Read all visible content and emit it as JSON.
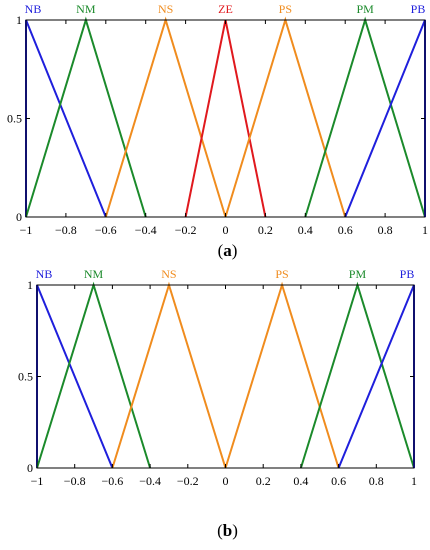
{
  "chart_data": [
    {
      "type": "line",
      "caption_open": "(",
      "caption_letter": "a",
      "caption_close": ")",
      "xlim": [
        -1,
        1
      ],
      "ylim": [
        0,
        1
      ],
      "xticks": [
        -1,
        -0.8,
        -0.6,
        -0.4,
        -0.2,
        0,
        0.2,
        0.4,
        0.6,
        0.8,
        1
      ],
      "xtick_labels": [
        "−1",
        "−0.8",
        "−0.6",
        "−0.4",
        "−0.2",
        "0",
        "0.2",
        "0.4",
        "0.6",
        "0.8",
        "1"
      ],
      "yticks": [
        0,
        0.5,
        1
      ],
      "ytick_labels": [
        "0",
        "0.5",
        "1"
      ],
      "grid": false,
      "series": [
        {
          "name": "NB",
          "color": "#1f1fdc",
          "x": [
            -1,
            -1,
            -0.6
          ],
          "y": [
            0,
            1,
            0
          ]
        },
        {
          "name": "NM",
          "color": "#1b8a2b",
          "x": [
            -1,
            -0.7,
            -0.4
          ],
          "y": [
            0,
            1,
            0
          ]
        },
        {
          "name": "NS",
          "color": "#f08c1e",
          "x": [
            -0.6,
            -0.3,
            0
          ],
          "y": [
            0,
            1,
            0
          ]
        },
        {
          "name": "ZE",
          "color": "#e0191e",
          "x": [
            -0.2,
            0,
            0.2
          ],
          "y": [
            0,
            1,
            0
          ]
        },
        {
          "name": "PS",
          "color": "#f08c1e",
          "x": [
            0,
            0.3,
            0.6
          ],
          "y": [
            0,
            1,
            0
          ]
        },
        {
          "name": "PM",
          "color": "#1b8a2b",
          "x": [
            0.4,
            0.7,
            1
          ],
          "y": [
            0,
            1,
            0
          ]
        },
        {
          "name": "PB",
          "color": "#1f1fdc",
          "x": [
            0.6,
            1,
            1
          ],
          "y": [
            0,
            1,
            0
          ]
        }
      ]
    },
    {
      "type": "line",
      "caption_open": "(",
      "caption_letter": "b",
      "caption_close": ")",
      "xlim": [
        -1,
        1
      ],
      "ylim": [
        0,
        1
      ],
      "xticks": [
        -1,
        -0.8,
        -0.6,
        -0.4,
        -0.2,
        0,
        0.2,
        0.4,
        0.6,
        0.8,
        1
      ],
      "xtick_labels": [
        "−1",
        "−0.8",
        "−0.6",
        "−0.4",
        "−0.2",
        "0",
        "0.2",
        "0.4",
        "0.6",
        "0.8",
        "1"
      ],
      "yticks": [
        0,
        0.5,
        1
      ],
      "ytick_labels": [
        "0",
        "0.5",
        "1"
      ],
      "grid": false,
      "series": [
        {
          "name": "NB",
          "color": "#1f1fdc",
          "x": [
            -1,
            -1,
            -0.6
          ],
          "y": [
            0,
            1,
            0
          ]
        },
        {
          "name": "NM",
          "color": "#1b8a2b",
          "x": [
            -1,
            -0.7,
            -0.4
          ],
          "y": [
            0,
            1,
            0
          ]
        },
        {
          "name": "NS",
          "color": "#f08c1e",
          "x": [
            -0.6,
            -0.3,
            0
          ],
          "y": [
            0,
            1,
            0
          ]
        },
        {
          "name": "PS",
          "color": "#f08c1e",
          "x": [
            0,
            0.3,
            0.6
          ],
          "y": [
            0,
            1,
            0
          ]
        },
        {
          "name": "PM",
          "color": "#1b8a2b",
          "x": [
            0.4,
            0.7,
            1
          ],
          "y": [
            0,
            1,
            0
          ]
        },
        {
          "name": "PB",
          "color": "#1f1fdc",
          "x": [
            0.6,
            1,
            1
          ],
          "y": [
            0,
            1,
            0
          ]
        }
      ]
    }
  ]
}
